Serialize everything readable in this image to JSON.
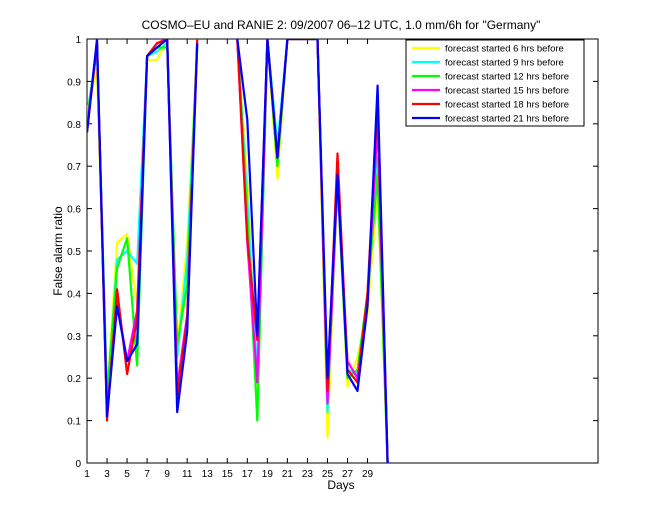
{
  "chart_data": {
    "type": "line",
    "title": "COSMO–EU and RANIE 2: 09/2007 06–12 UTC, 1.0 mm/6h for \"Germany\"",
    "xlabel": "Days",
    "ylabel": "False alarm ratio",
    "xlim": [
      1,
      52
    ],
    "ylim": [
      0,
      1
    ],
    "xticks": [
      1,
      3,
      5,
      7,
      9,
      11,
      13,
      15,
      17,
      19,
      21,
      23,
      25,
      27,
      29
    ],
    "yticks": [
      0,
      0.1,
      0.2,
      0.3,
      0.4,
      0.5,
      0.6,
      0.7,
      0.8,
      0.9,
      1
    ],
    "ytick_labels": [
      "0",
      "0.1",
      "0.2",
      "0.3",
      "0.4",
      "0.5",
      "0.6",
      "0.7",
      "0.8",
      "0.9",
      "1"
    ],
    "grid": false,
    "legend_position": "top-right",
    "x": [
      1,
      2,
      3,
      4,
      5,
      6,
      7,
      8,
      9,
      10,
      11,
      12,
      13,
      14,
      15,
      16,
      17,
      18,
      19,
      20,
      21,
      22,
      23,
      24,
      25,
      26,
      27,
      28,
      29,
      30,
      31
    ],
    "series": [
      {
        "name": "forecast started 6 hrs before",
        "color": "#ffff00",
        "values": [
          0.83,
          0.93,
          0.15,
          0.52,
          0.54,
          0.37,
          0.95,
          0.95,
          1.0,
          0.27,
          0.52,
          0.98,
          null,
          1.0,
          null,
          1.0,
          0.66,
          0.18,
          1.0,
          0.67,
          1.0,
          1.0,
          1.0,
          1.0,
          0.06,
          0.68,
          0.18,
          0.25,
          0.35,
          0.65,
          0.0
        ]
      },
      {
        "name": "forecast started 9 hrs before",
        "color": "#00ffff",
        "values": [
          0.82,
          0.97,
          0.14,
          0.48,
          0.5,
          0.47,
          0.96,
          0.97,
          0.99,
          0.25,
          0.48,
          0.98,
          null,
          1.0,
          null,
          1.0,
          0.62,
          0.21,
          1.0,
          0.75,
          1.0,
          1.0,
          1.0,
          1.0,
          0.12,
          0.7,
          0.22,
          0.21,
          0.38,
          0.72,
          0.0
        ]
      },
      {
        "name": "forecast started 12 hrs before",
        "color": "#00ff00",
        "values": [
          0.81,
          0.98,
          0.16,
          0.46,
          0.53,
          0.23,
          0.96,
          0.98,
          0.98,
          0.28,
          0.42,
          0.98,
          null,
          1.0,
          null,
          1.0,
          0.58,
          0.1,
          1.0,
          0.7,
          1.0,
          1.0,
          1.0,
          1.0,
          0.15,
          0.66,
          0.2,
          0.22,
          0.4,
          0.68,
          0.0
        ]
      },
      {
        "name": "forecast started 15 hrs before",
        "color": "#ff00ff",
        "values": [
          0.79,
          0.99,
          0.12,
          0.38,
          0.24,
          0.36,
          0.96,
          0.99,
          1.0,
          0.18,
          0.35,
          0.99,
          null,
          1.0,
          null,
          1.0,
          0.52,
          0.19,
          1.0,
          0.72,
          1.0,
          1.0,
          1.0,
          1.0,
          0.14,
          0.67,
          0.24,
          0.2,
          0.38,
          0.8,
          0.0
        ]
      },
      {
        "name": "forecast started 18 hrs before",
        "color": "#ff0000",
        "values": [
          0.78,
          0.99,
          0.1,
          0.41,
          0.21,
          0.34,
          0.96,
          0.99,
          1.0,
          0.16,
          0.34,
          1.0,
          null,
          1.0,
          null,
          1.0,
          0.53,
          0.29,
          1.0,
          0.72,
          1.0,
          1.0,
          1.0,
          1.0,
          0.17,
          0.73,
          0.22,
          0.19,
          0.4,
          0.85,
          0.0
        ]
      },
      {
        "name": "forecast started 21 hrs before",
        "color": "#0000ff",
        "values": [
          0.78,
          1.0,
          0.11,
          0.37,
          0.24,
          0.28,
          0.96,
          0.98,
          1.0,
          0.12,
          0.31,
          0.99,
          null,
          1.0,
          null,
          1.0,
          0.81,
          0.3,
          1.0,
          0.72,
          1.0,
          1.0,
          1.0,
          1.0,
          0.2,
          0.68,
          0.21,
          0.17,
          0.37,
          0.89,
          0.0
        ]
      }
    ]
  }
}
